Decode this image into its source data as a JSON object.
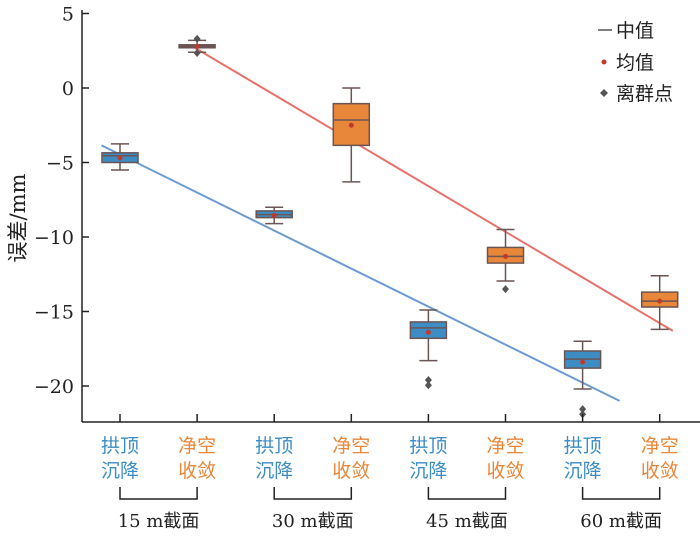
{
  "chart_data": {
    "type": "box",
    "ylabel": "误差/mm",
    "ylim": [
      -22.3,
      5
    ],
    "yticks": [
      5,
      0,
      -5,
      -10,
      -15,
      -20
    ],
    "ytick_labels": [
      "5",
      "0",
      "−5",
      "−10",
      "−15",
      "−20"
    ],
    "grid": false,
    "legend_position": "top-right",
    "legend": [
      {
        "label": "中值",
        "marker": "line"
      },
      {
        "label": "均值",
        "marker": "dot",
        "color": "#c0392b"
      },
      {
        "label": "离群点",
        "marker": "diamond",
        "color": "#555555"
      }
    ],
    "colors": {
      "settlement": "#3c8dc4",
      "convergence": "#e8873a",
      "fit_settlement": "#6a9bd1",
      "fit_convergence": "#e8716c",
      "mean": "#c0392b",
      "outlier": "#555555"
    },
    "categories": [
      {
        "line1": "拱顶",
        "line2": "沉降",
        "kind": "settlement"
      },
      {
        "line1": "净空",
        "line2": "收敛",
        "kind": "convergence"
      },
      {
        "line1": "拱顶",
        "line2": "沉降",
        "kind": "settlement"
      },
      {
        "line1": "净空",
        "line2": "收敛",
        "kind": "convergence"
      },
      {
        "line1": "拱顶",
        "line2": "沉降",
        "kind": "settlement"
      },
      {
        "line1": "净空",
        "line2": "收敛",
        "kind": "convergence"
      },
      {
        "line1": "拱顶",
        "line2": "沉降",
        "kind": "settlement"
      },
      {
        "line1": "净空",
        "line2": "收敛",
        "kind": "convergence"
      }
    ],
    "groups": [
      "15 m截面",
      "30 m截面",
      "45 m截面",
      "60 m截面"
    ],
    "boxes": [
      {
        "whislo": -5.5,
        "q1": -5.0,
        "med": -4.55,
        "q3": -4.35,
        "whishi": -3.75,
        "mean": -4.7,
        "fliers": []
      },
      {
        "whislo": 2.4,
        "q1": 2.7,
        "med": 2.8,
        "q3": 2.9,
        "whishi": 3.2,
        "mean": 2.8,
        "fliers": [
          3.3,
          2.35
        ]
      },
      {
        "whislo": -9.1,
        "q1": -8.7,
        "med": -8.5,
        "q3": -8.25,
        "whishi": -8.0,
        "mean": -8.55,
        "fliers": []
      },
      {
        "whislo": -6.3,
        "q1": -3.85,
        "med": -2.15,
        "q3": -1.05,
        "whishi": 0.0,
        "mean": -2.5,
        "fliers": []
      },
      {
        "whislo": -18.3,
        "q1": -16.8,
        "med": -16.1,
        "q3": -15.7,
        "whishi": -14.9,
        "mean": -16.4,
        "fliers": [
          -19.6,
          -19.95
        ]
      },
      {
        "whislo": -12.95,
        "q1": -11.75,
        "med": -11.3,
        "q3": -10.7,
        "whishi": -9.5,
        "mean": -11.3,
        "fliers": [
          -13.5
        ]
      },
      {
        "whislo": -20.2,
        "q1": -18.8,
        "med": -18.2,
        "q3": -17.65,
        "whishi": -17.0,
        "mean": -18.4,
        "fliers": [
          -21.55,
          -21.9
        ]
      },
      {
        "whislo": -16.2,
        "q1": -14.7,
        "med": -14.3,
        "q3": -13.7,
        "whishi": -12.6,
        "mean": -14.3,
        "fliers": []
      }
    ],
    "trend_lines": [
      {
        "kind": "settlement",
        "x": [
          -0.24,
          6.48
        ],
        "y": [
          -3.85,
          -21.0
        ]
      },
      {
        "kind": "convergence",
        "x": [
          0.97,
          7.17
        ],
        "y": [
          2.7,
          -16.3
        ]
      }
    ]
  }
}
